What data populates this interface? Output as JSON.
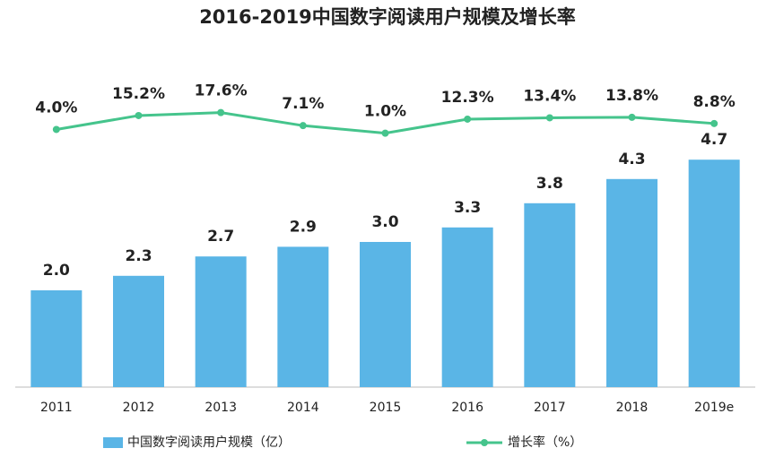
{
  "chart_data": {
    "type": "bar",
    "title": "2016-2019中国数字阅读用户规模及增长率",
    "categories": [
      "2011",
      "2012",
      "2013",
      "2014",
      "2015",
      "2016",
      "2017",
      "2018",
      "2019e"
    ],
    "ylim": [
      0,
      8
    ],
    "y2lim": [
      0,
      65
    ],
    "series": [
      {
        "name": "中国数字阅读用户规模（亿）",
        "type": "bar",
        "color": "#5ab5e6",
        "values": [
          2.0,
          2.3,
          2.7,
          2.9,
          3.0,
          3.3,
          3.8,
          4.3,
          4.7
        ],
        "value_labels": [
          "2.0",
          "2.3",
          "2.7",
          "2.9",
          "3.0",
          "3.3",
          "3.8",
          "4.3",
          "4.7"
        ]
      },
      {
        "name": "增长率（%）",
        "type": "line",
        "axis": "y2",
        "color": "#45c48c",
        "values": [
          4.0,
          15.2,
          17.6,
          7.1,
          1.0,
          12.3,
          13.4,
          13.8,
          8.8
        ],
        "value_labels": [
          "4.0%",
          "15.2%",
          "17.6%",
          "7.1%",
          "1.0%",
          "12.3%",
          "13.4%",
          "13.8%",
          "8.8%"
        ]
      }
    ]
  }
}
